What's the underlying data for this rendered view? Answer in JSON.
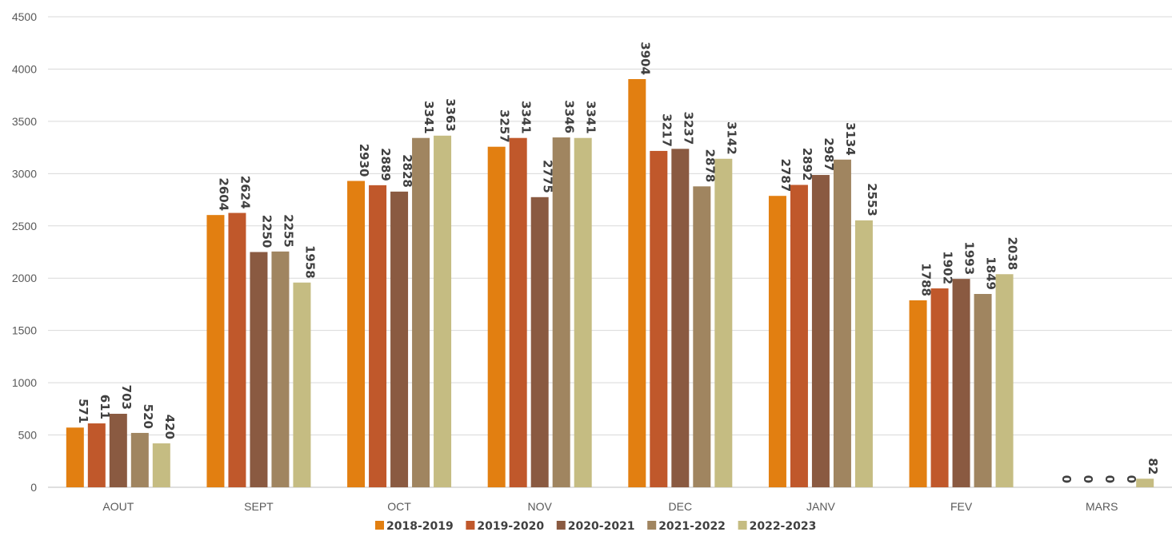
{
  "chart_data": {
    "type": "bar",
    "title": "",
    "xlabel": "",
    "ylabel": "",
    "ylim": [
      0,
      4500
    ],
    "yticks": [
      0,
      500,
      1000,
      1500,
      2000,
      2500,
      3000,
      3500,
      4000,
      4500
    ],
    "grid": true,
    "legend_position": "bottom",
    "categories": [
      "AOUT",
      "SEPT",
      "OCT",
      "NOV",
      "DEC",
      "JANV",
      "FEV",
      "MARS"
    ],
    "series": [
      {
        "name": "2018-2019",
        "color": "#E27F11",
        "values": [
          571,
          2604,
          2930,
          3257,
          3904,
          2787,
          1788,
          0
        ]
      },
      {
        "name": "2019-2020",
        "color": "#C0582B",
        "values": [
          611,
          2624,
          2889,
          3341,
          3217,
          2892,
          1902,
          0
        ]
      },
      {
        "name": "2020-2021",
        "color": "#8A5A41",
        "values": [
          703,
          2250,
          2828,
          2775,
          3237,
          2987,
          1993,
          0
        ]
      },
      {
        "name": "2021-2022",
        "color": "#A08560",
        "values": [
          520,
          2255,
          3341,
          3346,
          2878,
          3134,
          1849,
          0
        ]
      },
      {
        "name": "2022-2023",
        "color": "#C5BC82",
        "values": [
          420,
          1958,
          3363,
          3341,
          3142,
          2553,
          2038,
          82
        ]
      }
    ]
  }
}
